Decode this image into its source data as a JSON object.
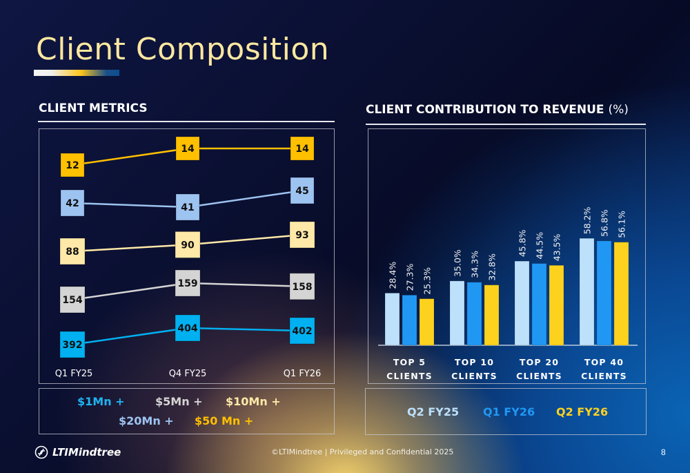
{
  "header": {
    "title": "Client Composition"
  },
  "left_section": {
    "title": "CLIENT METRICS"
  },
  "right_section": {
    "title_bold": "CLIENT CONTRIBUTION TO REVENUE",
    "title_light": "(%)"
  },
  "chart_data": [
    {
      "type": "line",
      "title": "CLIENT METRICS",
      "x": [
        "Q1 FY25",
        "Q4 FY25",
        "Q1 FY26"
      ],
      "series": [
        {
          "name": "$50 Mn +",
          "values": [
            12,
            14,
            14
          ],
          "color": "#ffc000",
          "text_color": "#ffc000"
        },
        {
          "name": "$20Mn +",
          "values": [
            42,
            41,
            45
          ],
          "color": "#9dc3f0",
          "text_color": "#9dc3f0"
        },
        {
          "name": "$10Mn +",
          "values": [
            88,
            90,
            93
          ],
          "color": "#ffe9a8",
          "text_color": "#ffe9a8"
        },
        {
          "name": "$5Mn +",
          "values": [
            154,
            159,
            158
          ],
          "color": "#d4d4d4",
          "text_color": "#d4d4d4"
        },
        {
          "name": "$1Mn +",
          "values": [
            392,
            404,
            402
          ],
          "color": "#00b0f0",
          "text_color": "#1fb4f2"
        }
      ],
      "legend_order": [
        "$1Mn +",
        "$5Mn +",
        "$10Mn +",
        "$20Mn +",
        "$50 Mn +"
      ],
      "legend_placement": "bottom",
      "grid": false
    },
    {
      "type": "bar",
      "title": "CLIENT CONTRIBUTION TO REVENUE (%)",
      "categories": [
        [
          "TOP 5",
          "CLIENTS"
        ],
        [
          "TOP 10",
          "CLIENTS"
        ],
        [
          "TOP 20",
          "CLIENTS"
        ],
        [
          "TOP 40",
          "CLIENTS"
        ]
      ],
      "series": [
        {
          "name": "Q2 FY25",
          "values": [
            28.4,
            35.0,
            45.8,
            58.2
          ],
          "color": "#bde0fb"
        },
        {
          "name": "Q1 FY26",
          "values": [
            27.3,
            34.3,
            44.5,
            56.8
          ],
          "color": "#2098f3"
        },
        {
          "name": "Q2 FY26",
          "values": [
            25.3,
            32.8,
            43.5,
            56.1
          ],
          "color": "#fdd21e"
        }
      ],
      "ylim": [
        0,
        100
      ],
      "data_label_suffix": "%",
      "legend_placement": "bottom",
      "grid": false
    }
  ],
  "footer": {
    "logo_text": "LTIMindtree",
    "copyright": "©LTIMindtree | Privileged and Confidential 2025",
    "page_number": "8"
  }
}
